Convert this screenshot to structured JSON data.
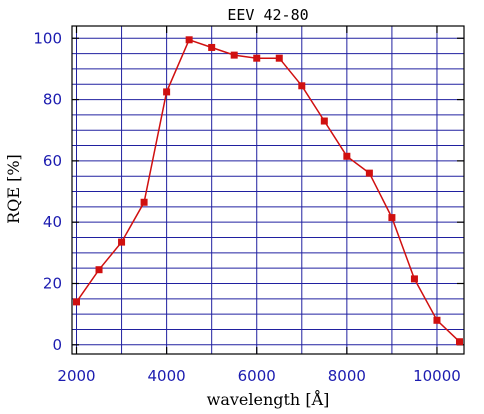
{
  "chart_data": {
    "type": "line",
    "title": "EEV 42-80",
    "xlabel": "wavelength [Å]",
    "ylabel": "RQE [%]",
    "xlim": [
      1900,
      10600
    ],
    "ylim": [
      -3,
      104
    ],
    "x_ticks": [
      2000,
      4000,
      6000,
      8000,
      10000
    ],
    "y_ticks": [
      0,
      20,
      40,
      60,
      80,
      100
    ],
    "x_gridlines": [
      2000,
      3000,
      4000,
      5000,
      6000,
      7000,
      8000,
      9000,
      10000
    ],
    "y_gridlines": [
      0,
      5,
      10,
      15,
      20,
      25,
      30,
      35,
      40,
      45,
      50,
      55,
      60,
      65,
      70,
      75,
      80,
      85,
      90,
      95,
      100
    ],
    "grid": true,
    "colors": {
      "line": "#d01010",
      "marker": "#d01010",
      "grid": "#2020a0",
      "frame": "#000000",
      "tick_label": "#1c1cb0"
    },
    "series": [
      {
        "x": [
          2000,
          2500,
          3000,
          3500,
          4000,
          4500,
          5000,
          5500,
          6000,
          6500,
          7000,
          7500,
          8000,
          8500,
          9000,
          9500,
          10000,
          10500
        ],
        "y": [
          14,
          24.5,
          33.5,
          46.5,
          82.5,
          99.5,
          97,
          94.5,
          93.5,
          93.5,
          84.5,
          73,
          61.5,
          56,
          41.5,
          21.5,
          8,
          1
        ]
      }
    ]
  }
}
